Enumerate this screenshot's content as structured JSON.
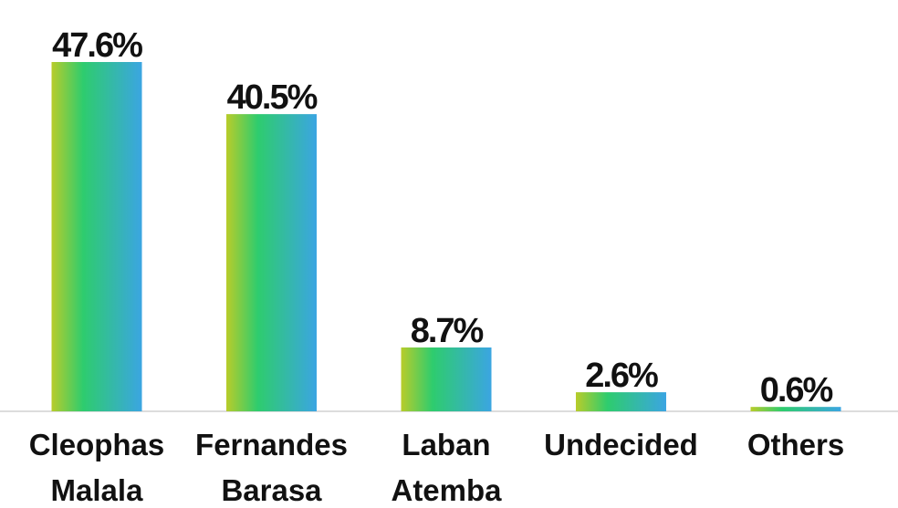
{
  "chart_data": {
    "type": "bar",
    "categories": [
      "Cleophas Malala",
      "Fernandes Barasa",
      "Laban Atemba",
      "Undecided",
      "Others"
    ],
    "values": [
      47.6,
      40.5,
      8.7,
      2.6,
      0.6
    ],
    "value_labels": [
      "47.6%",
      "40.5%",
      "8.7%",
      "2.6%",
      "0.6%"
    ],
    "colors": [
      "#b8cc2a",
      "#2ecc6e",
      "#3ba5e2"
    ]
  }
}
